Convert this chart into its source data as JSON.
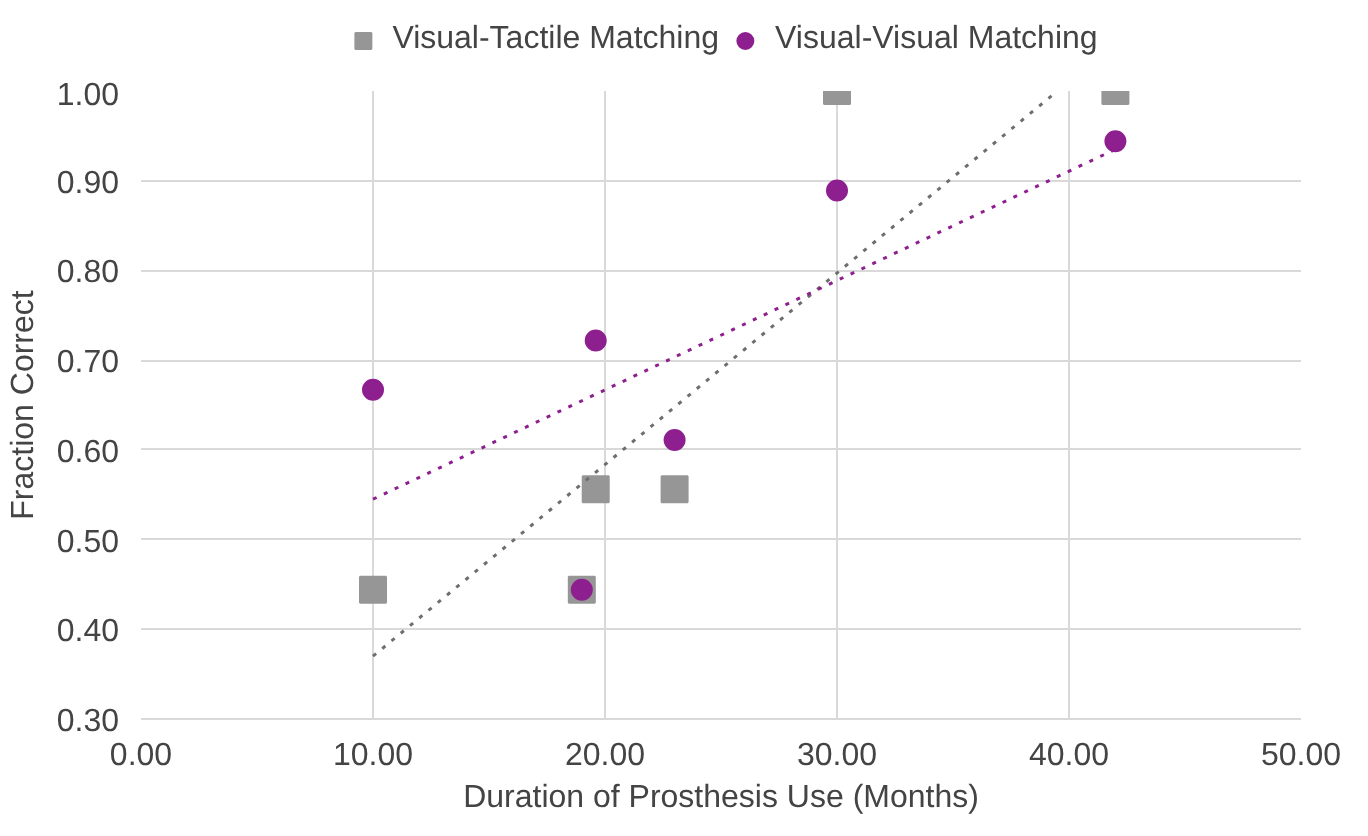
{
  "chart_data": {
    "type": "scatter",
    "xlabel": "Duration of Prosthesis Use (Months)",
    "ylabel": "Fraction Correct",
    "xlim": [
      0,
      50
    ],
    "ylim": [
      0.3,
      1.0
    ],
    "xticks": [
      {
        "value": 0,
        "label": "0.00"
      },
      {
        "value": 10,
        "label": "10.00"
      },
      {
        "value": 20,
        "label": "20.00"
      },
      {
        "value": 30,
        "label": "30.00"
      },
      {
        "value": 40,
        "label": "40.00"
      },
      {
        "value": 50,
        "label": "50.00"
      }
    ],
    "yticks": [
      {
        "value": 0.3,
        "label": "0.30"
      },
      {
        "value": 0.4,
        "label": "0.40"
      },
      {
        "value": 0.5,
        "label": "0.50"
      },
      {
        "value": 0.6,
        "label": "0.60"
      },
      {
        "value": 0.7,
        "label": "0.70"
      },
      {
        "value": 0.8,
        "label": "0.80"
      },
      {
        "value": 0.9,
        "label": "0.90"
      },
      {
        "value": 1.0,
        "label": "1.00"
      }
    ],
    "grid": true,
    "legend": "top",
    "series": [
      {
        "name": "Visual-Tactile Matching",
        "color": "#969696",
        "marker": "square",
        "x": [
          10,
          19,
          19.6,
          23,
          30,
          42
        ],
        "values": [
          0.444,
          0.444,
          0.556,
          0.556,
          1.0,
          1.0
        ]
      },
      {
        "name": "Visual-Visual Matching",
        "color": "#8e1f8f",
        "marker": "circle",
        "x": [
          10,
          19,
          19.6,
          23,
          30,
          42
        ],
        "values": [
          0.667,
          0.444,
          0.722,
          0.611,
          0.889,
          0.944
        ]
      },
      {
        "type": "line",
        "color": "#6e6e6e",
        "line_style": "dotted",
        "x": [
          10,
          39.5
        ],
        "values": [
          0.37,
          1.0
        ]
      },
      {
        "type": "line",
        "color": "#8e1f8f",
        "line_style": "dotted",
        "x": [
          10,
          42
        ],
        "values": [
          0.545,
          0.935
        ]
      }
    ]
  }
}
